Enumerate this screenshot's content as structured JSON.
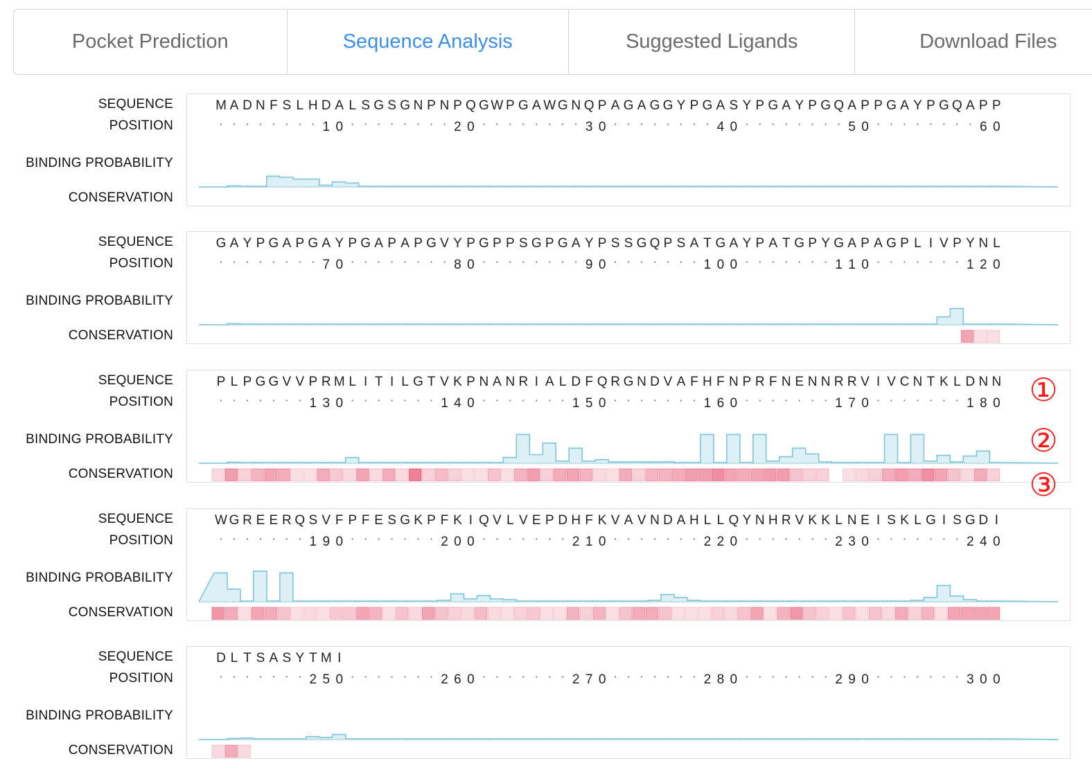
{
  "tabs": [
    {
      "label": "Pocket Prediction",
      "active": false
    },
    {
      "label": "Sequence Analysis",
      "active": true
    },
    {
      "label": "Suggested Ligands",
      "active": false
    },
    {
      "label": "Download Files",
      "active": false
    }
  ],
  "row_labels": {
    "sequence": "SEQUENCE",
    "position": "POSITION",
    "binding": "BINDING PROBABILITY",
    "conservation": "CONSERVATION"
  },
  "colors": {
    "binding_fill": "#dcf0f6",
    "binding_line": "#7fc4d8",
    "conservation": "#e23a5e",
    "active_tab": "#3d8ee6",
    "annotation": "#ff1a1a"
  },
  "blocks": [
    {
      "sequence": "MADNFSLHDALSGSGNPNPQGWPGAWGNQPAGAGGYPGASYPGAYPGQAPPGAYPGQAPP",
      "start": 1,
      "binding": [
        0,
        0.06,
        0.06,
        0,
        0.06,
        0,
        0.06,
        0,
        0.08,
        0.08,
        0.08,
        0.08,
        0.08,
        0.08,
        0.08,
        0.08,
        0.08,
        0.08,
        0.08,
        0.08,
        0.08,
        0.08,
        0.08,
        0.08,
        0.08,
        0.08,
        0.08,
        0.08,
        0.08,
        0.08,
        0.08,
        0.08,
        0.08,
        0.08,
        0.08,
        0.08,
        0.08,
        0.08,
        0.08,
        0.08,
        0.08,
        0.08,
        0.08,
        0.08,
        0.08,
        0.08,
        0.08,
        0.08,
        0.08,
        0.08,
        0.08,
        0.08,
        0.08,
        0.08,
        0.08,
        0.08,
        0.08,
        0.08,
        0.08,
        0.08
      ],
      "conservation": []
    },
    {
      "sequence": "GAYPGAPGAYPGAPAPGVYPGPPSGPGAYPSSGQPSATGAYPATGPYGAPAGPLIVPYNL",
      "start": 61,
      "binding": [],
      "conservation": []
    },
    {
      "sequence": "PLPGGVVPRMLITILGTVKPNANRIALDFQRGNDVAFHFNPRFNENNRRVIVCNTKLDNN",
      "start": 121,
      "binding": [],
      "conservation": []
    },
    {
      "sequence": "WGREERQSVFPFESGKPFKIQVLVEPDHFKVAVNDAHLLQYNHRVKKLNEISKLGISGDI",
      "start": 181,
      "binding": [],
      "conservation": []
    },
    {
      "sequence": "DLTSASYTMI",
      "start": 241,
      "binding": [],
      "conservation": []
    }
  ],
  "annotations": [
    "①",
    "②",
    "③"
  ]
}
